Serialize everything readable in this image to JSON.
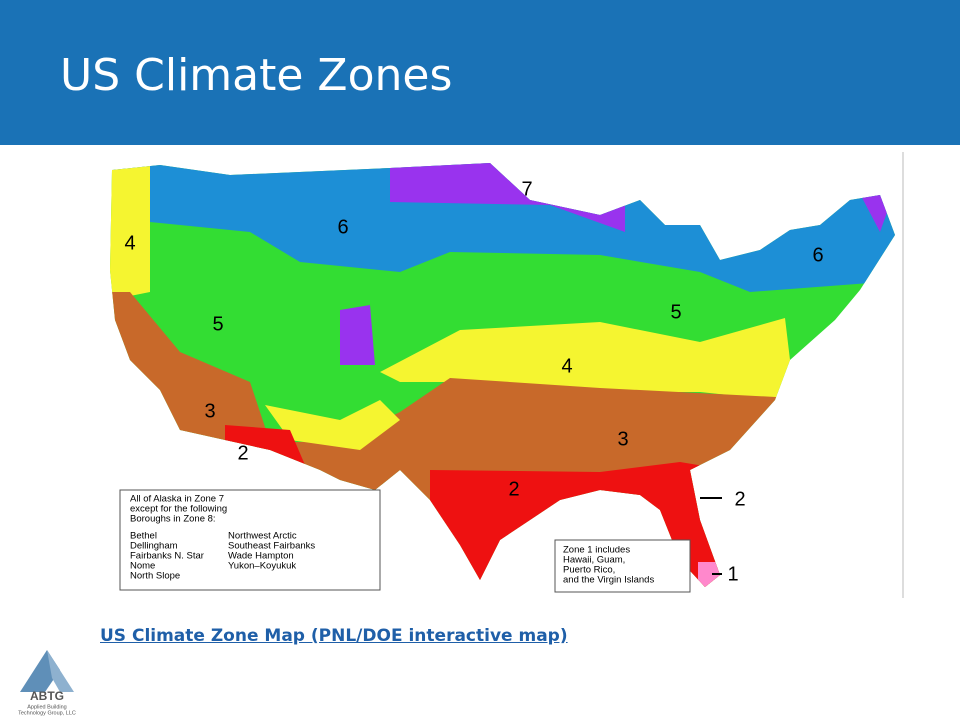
{
  "header": {
    "title": "US Climate Zones"
  },
  "map": {
    "zone_labels": [
      "7",
      "6",
      "4",
      "5",
      "3",
      "2",
      "5",
      "4",
      "3",
      "2",
      "6",
      "2",
      "1"
    ],
    "alaska_note": [
      "All of Alaska in Zone 7",
      "except for the following",
      "Boroughs in Zone 8:"
    ],
    "boroughs_left": [
      "Bethel",
      "Dellingham",
      "Fairbanks N. Star",
      "Nome",
      "North Slope"
    ],
    "boroughs_right": [
      "Northwest Arctic",
      "Southeast Fairbanks",
      "Wade Hampton",
      "Yukon–Koyukuk"
    ],
    "zone1_note": [
      "Zone 1 includes",
      "Hawaii, Guam,",
      "Puerto Rico,",
      "and the Virgin Islands"
    ]
  },
  "link": {
    "text": "US Climate Zone Map (PNL/DOE interactive map)"
  },
  "logo": {
    "name": "ABTG",
    "lines": [
      "Applied Building",
      "Technology Group, LLC"
    ]
  }
}
